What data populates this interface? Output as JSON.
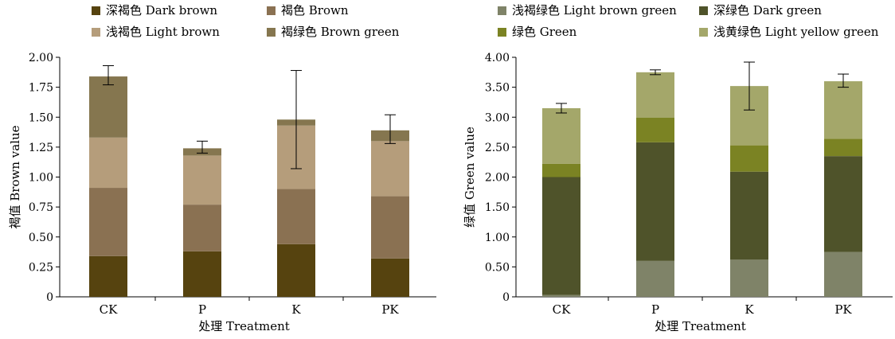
{
  "chart_data": [
    {
      "type": "bar",
      "stacked": true,
      "categories": [
        "CK",
        "P",
        "K",
        "PK"
      ],
      "xlabel": "处理 Treatment",
      "ylabel": "褐值 Brown value",
      "ylim": [
        0,
        2.0
      ],
      "yticks": [
        "0",
        "0.25",
        "0.50",
        "0.75",
        "1.00",
        "1.25",
        "1.50",
        "1.75",
        "2.00"
      ],
      "legend": "top",
      "series": [
        {
          "name": "深褐色 Dark brown",
          "color": "#56430f",
          "values": [
            0.34,
            0.38,
            0.44,
            0.32
          ]
        },
        {
          "name": "褐色 Brown",
          "color": "#8a7152",
          "values": [
            0.57,
            0.39,
            0.46,
            0.52
          ]
        },
        {
          "name": "浅褐色 Light brown",
          "color": "#b59d7b",
          "values": [
            0.42,
            0.41,
            0.53,
            0.46
          ]
        },
        {
          "name": "褐绿色 Brown green",
          "color": "#85764f",
          "values": [
            0.51,
            0.06,
            0.05,
            0.09
          ]
        }
      ],
      "totals": [
        1.85,
        1.25,
        1.48,
        1.4
      ],
      "errors": [
        0.08,
        0.05,
        0.41,
        0.12
      ]
    },
    {
      "type": "bar",
      "stacked": true,
      "categories": [
        "CK",
        "P",
        "K",
        "PK"
      ],
      "xlabel": "处理 Treatment",
      "ylabel": "绿值 Green value",
      "ylim": [
        0,
        4.0
      ],
      "yticks": [
        "0",
        "0.50",
        "1.00",
        "1.50",
        "2.00",
        "2.50",
        "3.00",
        "3.50",
        "4.00"
      ],
      "legend": "top",
      "series": [
        {
          "name": "浅褐绿色 Light brown green",
          "color": "#7f8368",
          "values": [
            0.03,
            0.6,
            0.62,
            0.75
          ]
        },
        {
          "name": "深绿色 Dark green",
          "color": "#4f532a",
          "values": [
            1.97,
            1.98,
            1.47,
            1.6
          ]
        },
        {
          "name": "绿色 Green",
          "color": "#7b8323",
          "values": [
            0.22,
            0.41,
            0.44,
            0.29
          ]
        },
        {
          "name": "浅黄绿色 Light yellow green",
          "color": "#a4a76a",
          "values": [
            0.93,
            0.76,
            0.99,
            0.96
          ]
        }
      ],
      "totals": [
        3.15,
        3.75,
        3.52,
        3.61
      ],
      "errors": [
        0.08,
        0.04,
        0.4,
        0.11
      ]
    }
  ]
}
